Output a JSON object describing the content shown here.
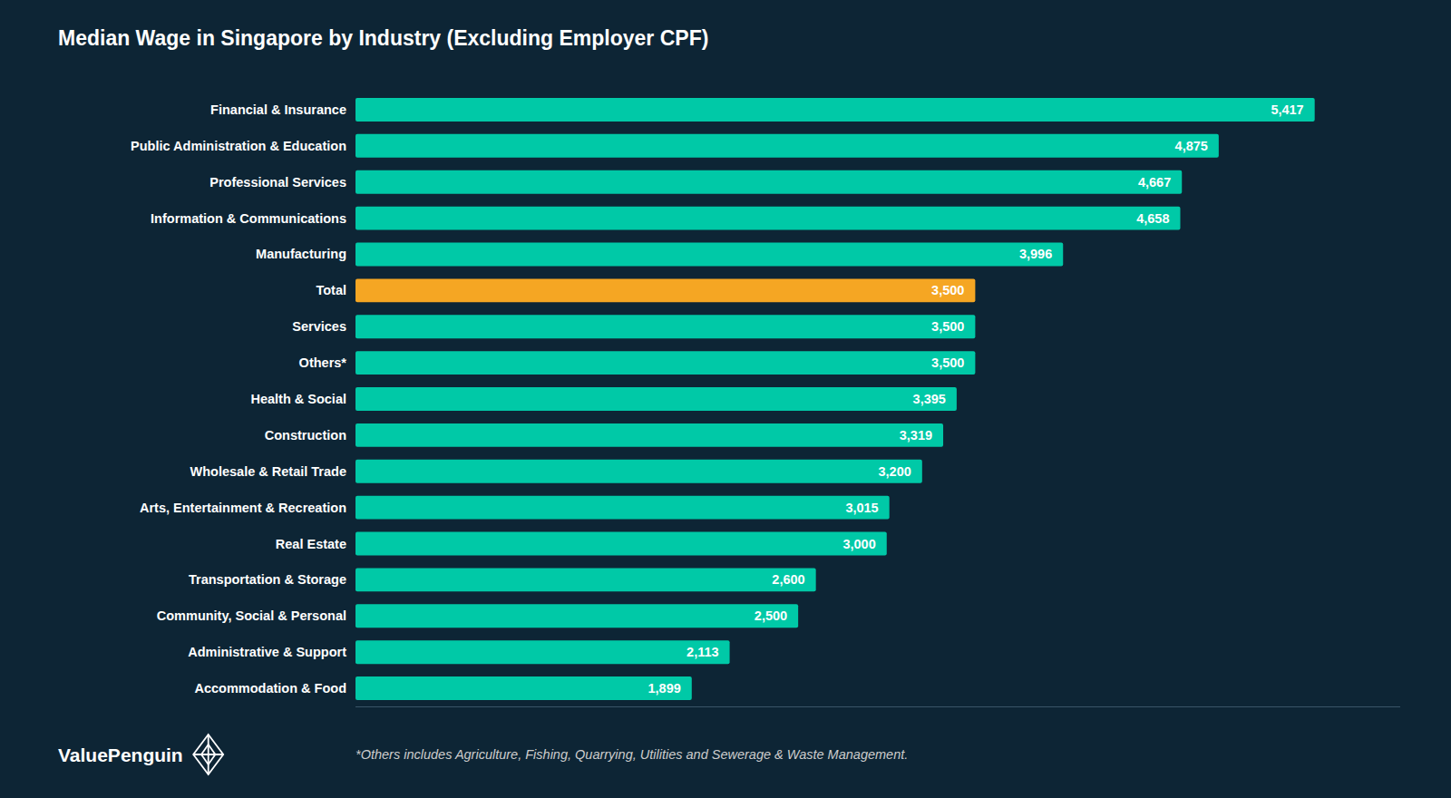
{
  "chart_data": {
    "type": "bar",
    "orientation": "horizontal",
    "title": "Median Wage in Singapore by Industry (Excluding Employer CPF)",
    "categories": [
      "Financial & Insurance",
      "Public Administration & Education",
      "Professional Services",
      "Information & Communications",
      "Manufacturing",
      "Total",
      "Services",
      "Others*",
      "Health & Social",
      "Construction",
      "Wholesale & Retail Trade",
      "Arts, Entertainment & Recreation",
      "Real Estate",
      "Transportation & Storage",
      "Community, Social & Personal",
      "Administrative & Support",
      "Accommodation & Food"
    ],
    "values": [
      5417,
      4875,
      4667,
      4658,
      3996,
      3500,
      3500,
      3500,
      3395,
      3319,
      3200,
      3015,
      3000,
      2600,
      2500,
      2113,
      1899
    ],
    "value_labels": [
      "5,417",
      "4,875",
      "4,667",
      "4,658",
      "3,996",
      "3,500",
      "3,500",
      "3,500",
      "3,395",
      "3,319",
      "3,200",
      "3,015",
      "3,000",
      "2,600",
      "2,500",
      "2,113",
      "1,899"
    ],
    "colors": [
      "#00C9A7",
      "#00C9A7",
      "#00C9A7",
      "#00C9A7",
      "#00C9A7",
      "#F5A623",
      "#00C9A7",
      "#00C9A7",
      "#00C9A7",
      "#00C9A7",
      "#00C9A7",
      "#00C9A7",
      "#00C9A7",
      "#00C9A7",
      "#00C9A7",
      "#00C9A7",
      "#00C9A7"
    ],
    "xlim": [
      0,
      5900
    ],
    "data_labels": true,
    "tick_labels": "y",
    "grid": false,
    "annotations": [
      "ValuePenguin",
      "*Others includes Agriculture, Fishing, Quarrying, Utilities and Sewerage & Waste Management."
    ]
  }
}
